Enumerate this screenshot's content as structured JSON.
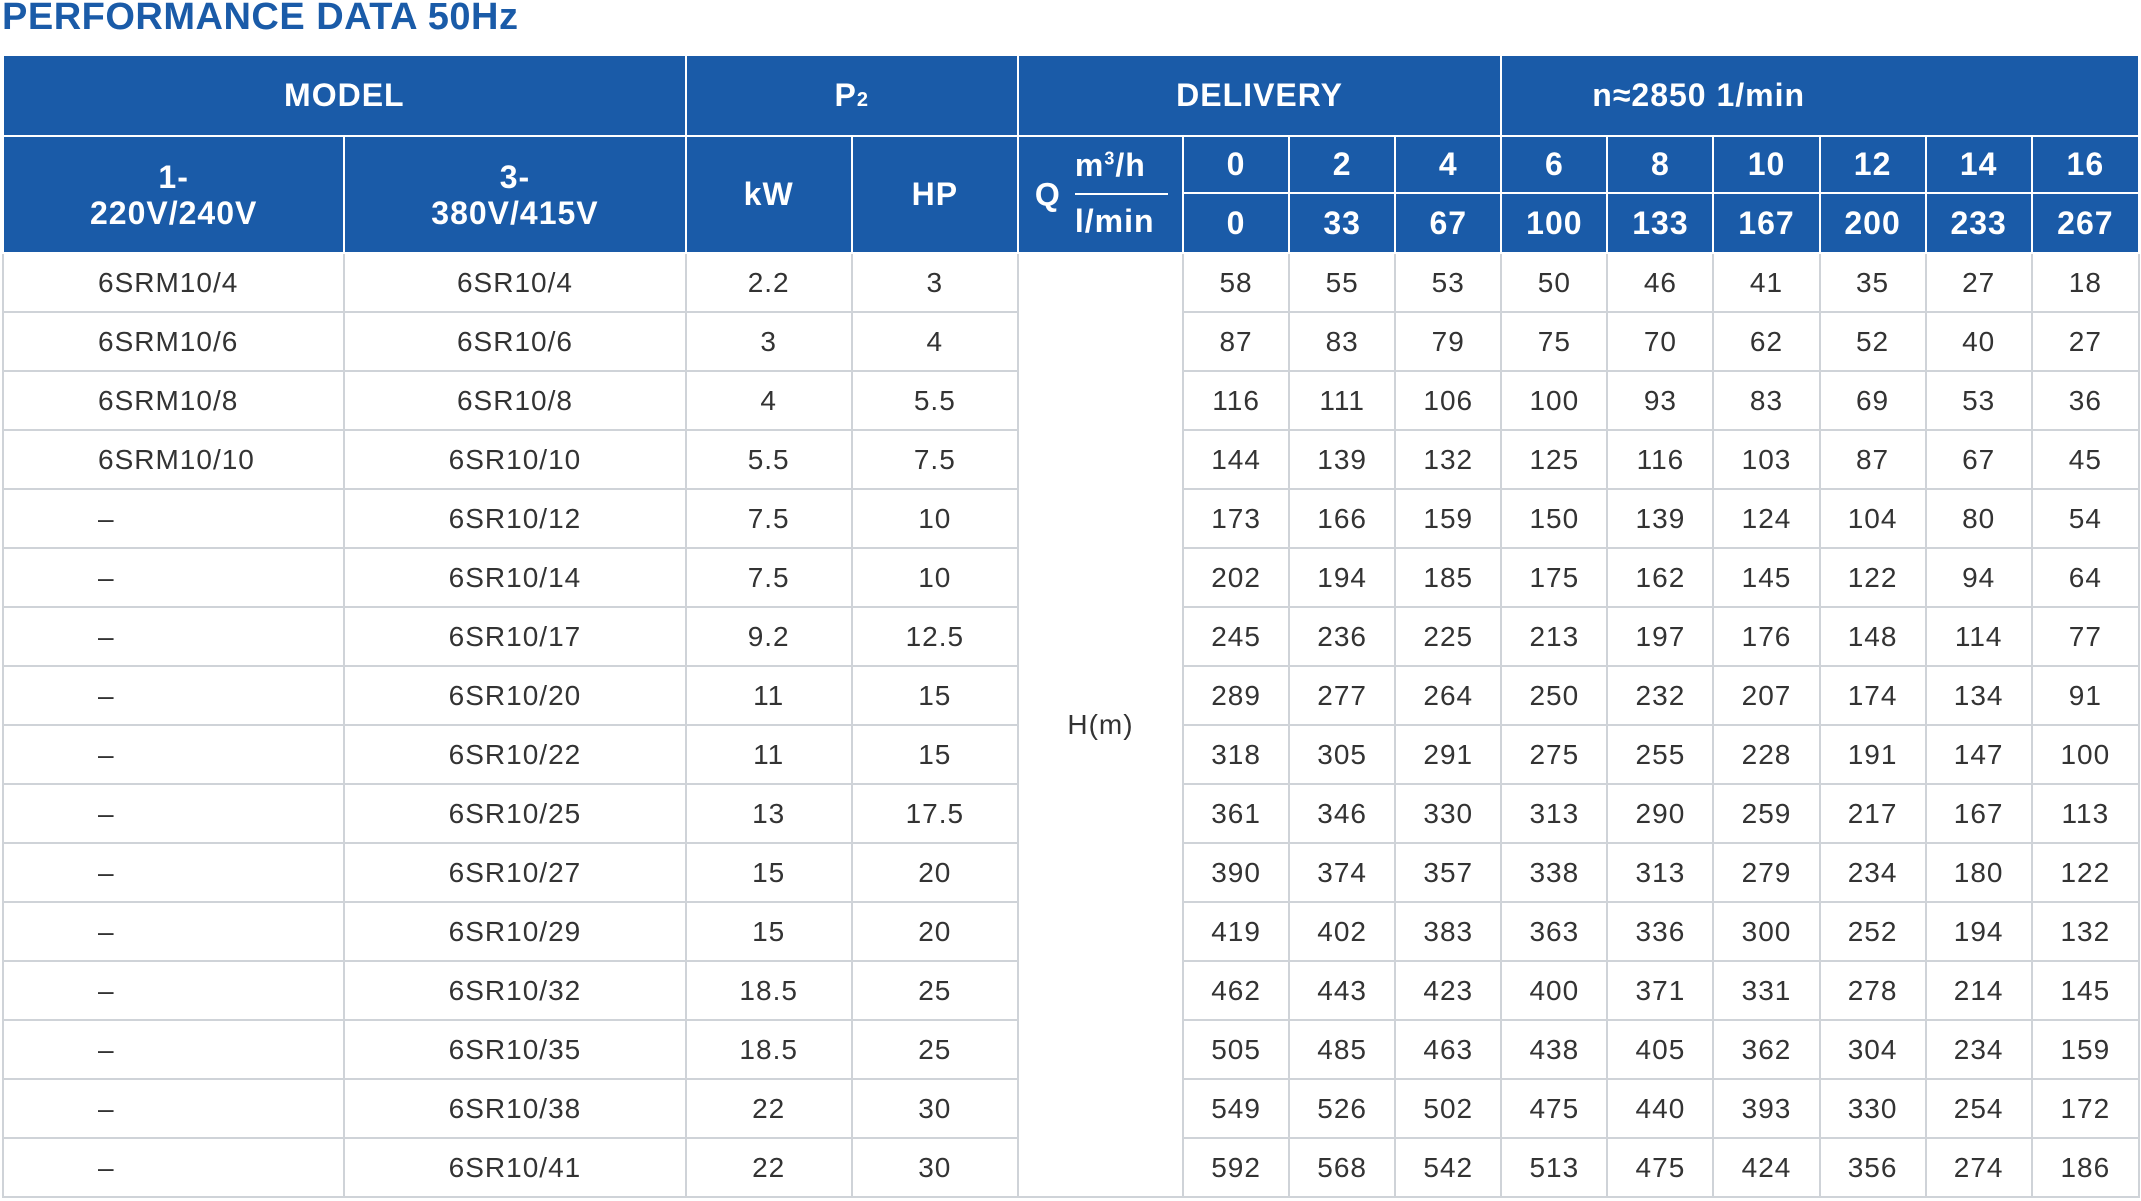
{
  "title": "PERFORMANCE DATA 50Hz",
  "header": {
    "model": "MODEL",
    "p2_base": "P",
    "p2_sub": "2",
    "delivery": "DELIVERY",
    "speed": "n≈2850  1/min",
    "single_phase_line1": "1-",
    "single_phase_line2": "220V/240V",
    "three_phase_line1": "3-",
    "three_phase_line2": "380V/415V",
    "kw": "kW",
    "hp": "HP",
    "q_letter": "Q",
    "q_unit_m3h_base": "m",
    "q_unit_m3h_sup": "3",
    "q_unit_m3h_tail": "/h",
    "q_unit_lmin": "l/min",
    "head_label": "H(m)"
  },
  "flow_m3h": [
    "0",
    "2",
    "4",
    "6",
    "8",
    "10",
    "12",
    "14",
    "16"
  ],
  "flow_lmin": [
    "0",
    "33",
    "67",
    "100",
    "133",
    "167",
    "200",
    "233",
    "267"
  ],
  "rows": [
    {
      "single": "6SRM10/4",
      "three": "6SR10/4",
      "kw": "2.2",
      "hp": "3",
      "heads": [
        "58",
        "55",
        "53",
        "50",
        "46",
        "41",
        "35",
        "27",
        "18"
      ]
    },
    {
      "single": "6SRM10/6",
      "three": "6SR10/6",
      "kw": "3",
      "hp": "4",
      "heads": [
        "87",
        "83",
        "79",
        "75",
        "70",
        "62",
        "52",
        "40",
        "27"
      ]
    },
    {
      "single": "6SRM10/8",
      "three": "6SR10/8",
      "kw": "4",
      "hp": "5.5",
      "heads": [
        "116",
        "111",
        "106",
        "100",
        "93",
        "83",
        "69",
        "53",
        "36"
      ]
    },
    {
      "single": "6SRM10/10",
      "three": "6SR10/10",
      "kw": "5.5",
      "hp": "7.5",
      "heads": [
        "144",
        "139",
        "132",
        "125",
        "116",
        "103",
        "87",
        "67",
        "45"
      ]
    },
    {
      "single": "–",
      "three": "6SR10/12",
      "kw": "7.5",
      "hp": "10",
      "heads": [
        "173",
        "166",
        "159",
        "150",
        "139",
        "124",
        "104",
        "80",
        "54"
      ]
    },
    {
      "single": "–",
      "three": "6SR10/14",
      "kw": "7.5",
      "hp": "10",
      "heads": [
        "202",
        "194",
        "185",
        "175",
        "162",
        "145",
        "122",
        "94",
        "64"
      ]
    },
    {
      "single": "–",
      "three": "6SR10/17",
      "kw": "9.2",
      "hp": "12.5",
      "heads": [
        "245",
        "236",
        "225",
        "213",
        "197",
        "176",
        "148",
        "114",
        "77"
      ]
    },
    {
      "single": "–",
      "three": "6SR10/20",
      "kw": "11",
      "hp": "15",
      "heads": [
        "289",
        "277",
        "264",
        "250",
        "232",
        "207",
        "174",
        "134",
        "91"
      ]
    },
    {
      "single": "–",
      "three": "6SR10/22",
      "kw": "11",
      "hp": "15",
      "heads": [
        "318",
        "305",
        "291",
        "275",
        "255",
        "228",
        "191",
        "147",
        "100"
      ]
    },
    {
      "single": "–",
      "three": "6SR10/25",
      "kw": "13",
      "hp": "17.5",
      "heads": [
        "361",
        "346",
        "330",
        "313",
        "290",
        "259",
        "217",
        "167",
        "113"
      ]
    },
    {
      "single": "–",
      "three": "6SR10/27",
      "kw": "15",
      "hp": "20",
      "heads": [
        "390",
        "374",
        "357",
        "338",
        "313",
        "279",
        "234",
        "180",
        "122"
      ]
    },
    {
      "single": "–",
      "three": "6SR10/29",
      "kw": "15",
      "hp": "20",
      "heads": [
        "419",
        "402",
        "383",
        "363",
        "336",
        "300",
        "252",
        "194",
        "132"
      ]
    },
    {
      "single": "–",
      "three": "6SR10/32",
      "kw": "18.5",
      "hp": "25",
      "heads": [
        "462",
        "443",
        "423",
        "400",
        "371",
        "331",
        "278",
        "214",
        "145"
      ]
    },
    {
      "single": "–",
      "three": "6SR10/35",
      "kw": "18.5",
      "hp": "25",
      "heads": [
        "505",
        "485",
        "463",
        "438",
        "405",
        "362",
        "304",
        "234",
        "159"
      ]
    },
    {
      "single": "–",
      "three": "6SR10/38",
      "kw": "22",
      "hp": "30",
      "heads": [
        "549",
        "526",
        "502",
        "475",
        "440",
        "393",
        "330",
        "254",
        "172"
      ]
    },
    {
      "single": "–",
      "three": "6SR10/41",
      "kw": "22",
      "hp": "30",
      "heads": [
        "592",
        "568",
        "542",
        "513",
        "475",
        "424",
        "356",
        "274",
        "186"
      ]
    }
  ]
}
